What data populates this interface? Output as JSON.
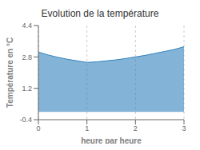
{
  "chart_data": {
    "type": "area",
    "title": "Evolution de la température",
    "xlabel": "heure par heure",
    "ylabel": "Température en °C",
    "x": [
      0,
      0.2,
      0.4,
      0.6,
      0.8,
      1.0,
      1.2,
      1.4,
      1.6,
      1.8,
      2.0,
      2.2,
      2.4,
      2.6,
      2.8,
      3.0
    ],
    "values": [
      3.05,
      2.9,
      2.78,
      2.68,
      2.6,
      2.52,
      2.55,
      2.6,
      2.65,
      2.72,
      2.8,
      2.88,
      2.98,
      3.08,
      3.18,
      3.32
    ],
    "xlim": [
      0,
      3
    ],
    "ylim": [
      -0.4,
      4.4
    ],
    "xticks": [
      0,
      1,
      2,
      3
    ],
    "yticks": [
      -0.4,
      1.2,
      2.8,
      4.4
    ],
    "grid": "x"
  }
}
